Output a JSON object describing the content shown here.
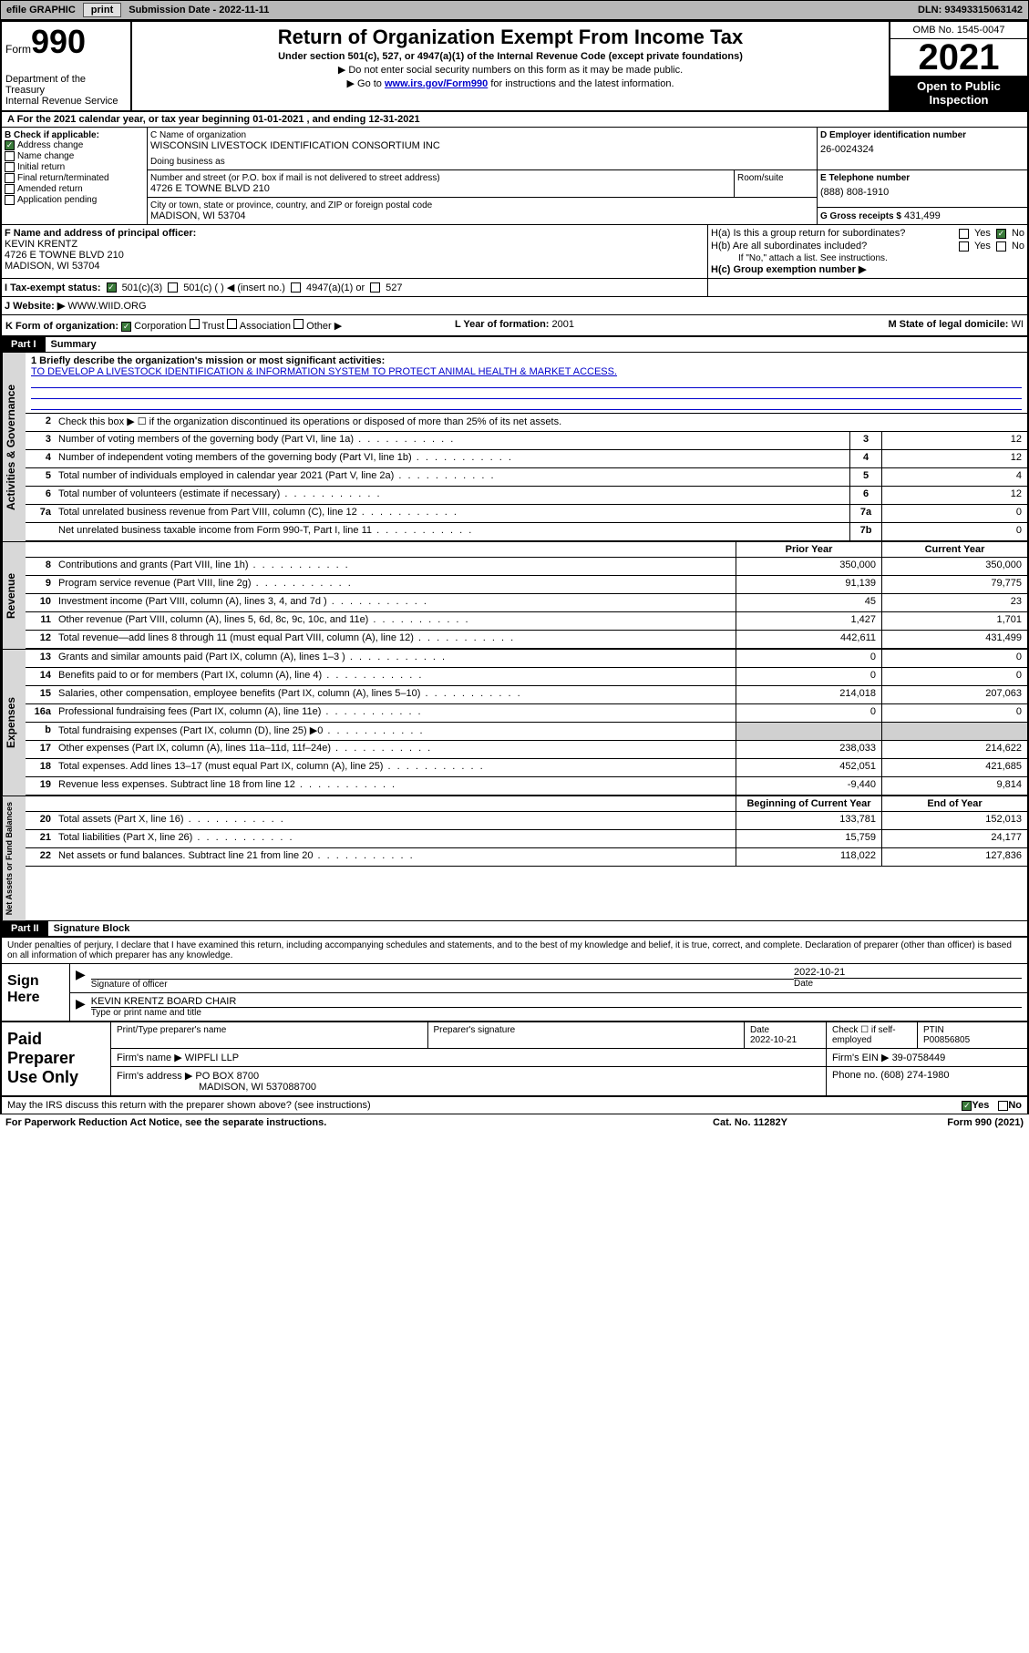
{
  "topbar": {
    "efile": "efile GRAPHIC",
    "print": "print",
    "subdate_label": "Submission Date - ",
    "subdate": "2022-11-11",
    "dln_label": "DLN: ",
    "dln": "93493315063142"
  },
  "header": {
    "form_word": "Form",
    "form_num": "990",
    "dept": "Department of the Treasury\nInternal Revenue Service",
    "title": "Return of Organization Exempt From Income Tax",
    "sub": "Under section 501(c), 527, or 4947(a)(1) of the Internal Revenue Code (except private foundations)",
    "note1": "▶ Do not enter social security numbers on this form as it may be made public.",
    "note2_pre": "▶ Go to ",
    "note2_link": "www.irs.gov/Form990",
    "note2_post": " for instructions and the latest information.",
    "omb": "OMB No. 1545-0047",
    "year": "2021",
    "open": "Open to Public Inspection"
  },
  "rowA": "A For the 2021 calendar year, or tax year beginning 01-01-2021    , and ending 12-31-2021",
  "B": {
    "header": "B Check if applicable:",
    "items": [
      {
        "label": "Address change",
        "checked": true
      },
      {
        "label": "Name change",
        "checked": false
      },
      {
        "label": "Initial return",
        "checked": false
      },
      {
        "label": "Final return/terminated",
        "checked": false
      },
      {
        "label": "Amended return",
        "checked": false
      },
      {
        "label": "Application pending",
        "checked": false
      }
    ]
  },
  "C": {
    "name_label": "C Name of organization",
    "name": "WISCONSIN LIVESTOCK IDENTIFICATION CONSORTIUM INC",
    "dba_label": "Doing business as",
    "street_label": "Number and street (or P.O. box if mail is not delivered to street address)",
    "street": "4726 E TOWNE BLVD 210",
    "room_label": "Room/suite",
    "city_label": "City or town, state or province, country, and ZIP or foreign postal code",
    "city": "MADISON, WI  53704"
  },
  "D": {
    "label": "D Employer identification number",
    "val": "26-0024324"
  },
  "E": {
    "label": "E Telephone number",
    "val": "(888) 808-1910"
  },
  "G": {
    "label": "G Gross receipts $",
    "val": "431,499"
  },
  "F": {
    "label": "F  Name and address of principal officer:",
    "name": "KEVIN KRENTZ",
    "addr1": "4726 E TOWNE BLVD 210",
    "addr2": "MADISON, WI  53704"
  },
  "H": {
    "ha": "H(a)  Is this a group return for subordinates?",
    "ha_yes": "Yes",
    "ha_no": "No",
    "hb": "H(b)  Are all subordinates included?",
    "hb_yes": "Yes",
    "hb_no": "No",
    "hb_note": "If \"No,\" attach a list. See instructions.",
    "hc": "H(c)  Group exemption number ▶"
  },
  "I": {
    "label": "I    Tax-exempt status:",
    "o1": "501(c)(3)",
    "o2": "501(c) (   ) ◀ (insert no.)",
    "o3": "4947(a)(1) or",
    "o4": "527"
  },
  "J": {
    "label": "J   Website: ▶",
    "val": "WWW.WIID.ORG"
  },
  "K": {
    "label": "K Form of organization:",
    "corp": "Corporation",
    "trust": "Trust",
    "assoc": "Association",
    "other": "Other ▶"
  },
  "L": {
    "label": "L Year of formation: ",
    "val": "2001"
  },
  "M": {
    "label": "M State of legal domicile: ",
    "val": "WI"
  },
  "part1": {
    "hdr": "Part I",
    "title": "Summary"
  },
  "mission": {
    "line1_label": "1  Briefly describe the organization's mission or most significant activities:",
    "text": "TO DEVELOP A LIVESTOCK IDENTIFICATION & INFORMATION SYSTEM TO PROTECT ANIMAL HEALTH & MARKET ACCESS."
  },
  "gov": {
    "side": "Activities & Governance",
    "l2": "Check this box ▶ ☐  if the organization discontinued its operations or disposed of more than 25% of its net assets.",
    "lines": [
      {
        "n": "3",
        "d": "Number of voting members of the governing body (Part VI, line 1a)",
        "box": "3",
        "v": "12"
      },
      {
        "n": "4",
        "d": "Number of independent voting members of the governing body (Part VI, line 1b)",
        "box": "4",
        "v": "12"
      },
      {
        "n": "5",
        "d": "Total number of individuals employed in calendar year 2021 (Part V, line 2a)",
        "box": "5",
        "v": "4"
      },
      {
        "n": "6",
        "d": "Total number of volunteers (estimate if necessary)",
        "box": "6",
        "v": "12"
      },
      {
        "n": "7a",
        "d": "Total unrelated business revenue from Part VIII, column (C), line 12",
        "box": "7a",
        "v": "0"
      },
      {
        "n": "",
        "d": "Net unrelated business taxable income from Form 990-T, Part I, line 11",
        "box": "7b",
        "v": "0"
      }
    ]
  },
  "colhdr": {
    "prior": "Prior Year",
    "current": "Current Year"
  },
  "rev": {
    "side": "Revenue",
    "lines": [
      {
        "n": "8",
        "d": "Contributions and grants (Part VIII, line 1h)",
        "pv": "350,000",
        "cv": "350,000"
      },
      {
        "n": "9",
        "d": "Program service revenue (Part VIII, line 2g)",
        "pv": "91,139",
        "cv": "79,775"
      },
      {
        "n": "10",
        "d": "Investment income (Part VIII, column (A), lines 3, 4, and 7d )",
        "pv": "45",
        "cv": "23"
      },
      {
        "n": "11",
        "d": "Other revenue (Part VIII, column (A), lines 5, 6d, 8c, 9c, 10c, and 11e)",
        "pv": "1,427",
        "cv": "1,701"
      },
      {
        "n": "12",
        "d": "Total revenue—add lines 8 through 11 (must equal Part VIII, column (A), line 12)",
        "pv": "442,611",
        "cv": "431,499"
      }
    ]
  },
  "exp": {
    "side": "Expenses",
    "lines": [
      {
        "n": "13",
        "d": "Grants and similar amounts paid (Part IX, column (A), lines 1–3 )",
        "pv": "0",
        "cv": "0"
      },
      {
        "n": "14",
        "d": "Benefits paid to or for members (Part IX, column (A), line 4)",
        "pv": "0",
        "cv": "0"
      },
      {
        "n": "15",
        "d": "Salaries, other compensation, employee benefits (Part IX, column (A), lines 5–10)",
        "pv": "214,018",
        "cv": "207,063"
      },
      {
        "n": "16a",
        "d": "Professional fundraising fees (Part IX, column (A), line 11e)",
        "pv": "0",
        "cv": "0"
      },
      {
        "n": "b",
        "d": "Total fundraising expenses (Part IX, column (D), line 25) ▶0",
        "pv": "",
        "cv": "",
        "shade": true
      },
      {
        "n": "17",
        "d": "Other expenses (Part IX, column (A), lines 11a–11d, 11f–24e)",
        "pv": "238,033",
        "cv": "214,622"
      },
      {
        "n": "18",
        "d": "Total expenses. Add lines 13–17 (must equal Part IX, column (A), line 25)",
        "pv": "452,051",
        "cv": "421,685"
      },
      {
        "n": "19",
        "d": "Revenue less expenses. Subtract line 18 from line 12",
        "pv": "-9,440",
        "cv": "9,814"
      }
    ]
  },
  "na": {
    "side": "Net Assets or Fund Balances",
    "hdr_l": "Beginning of Current Year",
    "hdr_r": "End of Year",
    "lines": [
      {
        "n": "20",
        "d": "Total assets (Part X, line 16)",
        "pv": "133,781",
        "cv": "152,013"
      },
      {
        "n": "21",
        "d": "Total liabilities (Part X, line 26)",
        "pv": "15,759",
        "cv": "24,177"
      },
      {
        "n": "22",
        "d": "Net assets or fund balances. Subtract line 21 from line 20",
        "pv": "118,022",
        "cv": "127,836"
      }
    ]
  },
  "part2": {
    "hdr": "Part II",
    "title": "Signature Block"
  },
  "sig": {
    "decl": "Under penalties of perjury, I declare that I have examined this return, including accompanying schedules and statements, and to the best of my knowledge and belief, it is true, correct, and complete. Declaration of preparer (other than officer) is based on all information of which preparer has any knowledge.",
    "left": "Sign Here",
    "date": "2022-10-21",
    "sig_label": "Signature of officer",
    "date_label": "Date",
    "name": "KEVIN KRENTZ  BOARD CHAIR",
    "name_label": "Type or print name and title"
  },
  "prep": {
    "left": "Paid Preparer Use Only",
    "h1": "Print/Type preparer's name",
    "h2": "Preparer's signature",
    "h3": "Date",
    "h3v": "2022-10-21",
    "h4": "Check ☐ if self-employed",
    "h5": "PTIN",
    "h5v": "P00856805",
    "firm_label": "Firm's name   ▶",
    "firm": "WIPFLI LLP",
    "ein_label": "Firm's EIN ▶",
    "ein": "39-0758449",
    "addr_label": "Firm's address ▶",
    "addr1": "PO BOX 8700",
    "addr2": "MADISON, WI  537088700",
    "phone_label": "Phone no.",
    "phone": "(608) 274-1980"
  },
  "footer": {
    "q": "May the IRS discuss this return with the preparer shown above? (see instructions)",
    "yes": "Yes",
    "no": "No",
    "pra": "For Paperwork Reduction Act Notice, see the separate instructions.",
    "cat": "Cat. No. 11282Y",
    "form": "Form 990 (2021)"
  },
  "colors": {
    "link": "#0000cc",
    "chk_on": "#3a7a3a",
    "topbar_bg": "#b8b8b8",
    "sidebar_bg": "#d8d8d8"
  }
}
